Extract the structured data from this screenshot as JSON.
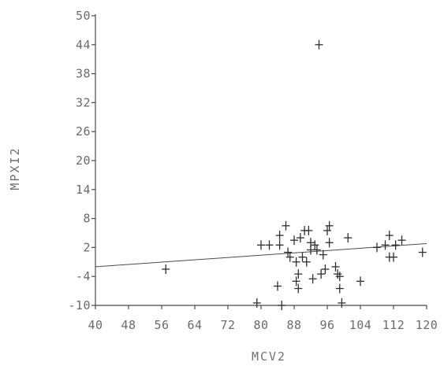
{
  "chart_data": {
    "type": "scatter",
    "title": "",
    "xlabel": "MCV2",
    "ylabel": "MPXI2",
    "xlim": [
      40,
      120
    ],
    "ylim": [
      -10,
      50
    ],
    "x_ticks": [
      40,
      48,
      56,
      64,
      72,
      80,
      88,
      96,
      104,
      112,
      120
    ],
    "x_tick_labels": [
      "40",
      "48",
      "56",
      "64",
      "72",
      "80",
      "88",
      "96",
      "104",
      "112",
      "120"
    ],
    "y_ticks": [
      -10,
      -4,
      2,
      8,
      14,
      20,
      26,
      32,
      38,
      44,
      50
    ],
    "y_tick_labels": [
      "-10",
      "-4",
      "2",
      "8",
      "14",
      "20",
      "26",
      "32",
      "38",
      "44",
      "50"
    ],
    "grid": false,
    "legend": "none",
    "regression_line": {
      "x": [
        40,
        120
      ],
      "y": [
        -2.0,
        2.8
      ]
    },
    "points": [
      {
        "x": 57,
        "y": -2.5
      },
      {
        "x": 79,
        "y": -9.5
      },
      {
        "x": 80,
        "y": 2.5
      },
      {
        "x": 82,
        "y": 2.5
      },
      {
        "x": 84,
        "y": -6.0
      },
      {
        "x": 84.5,
        "y": 4.5
      },
      {
        "x": 84.5,
        "y": 2.5
      },
      {
        "x": 85,
        "y": -10.0
      },
      {
        "x": 86,
        "y": 6.5
      },
      {
        "x": 86.5,
        "y": 1.0
      },
      {
        "x": 87,
        "y": 0.0
      },
      {
        "x": 88,
        "y": 3.5
      },
      {
        "x": 88.5,
        "y": -1.0
      },
      {
        "x": 88.5,
        "y": -5.0
      },
      {
        "x": 89,
        "y": -3.5
      },
      {
        "x": 89,
        "y": -6.5
      },
      {
        "x": 89.5,
        "y": 4.0
      },
      {
        "x": 90,
        "y": 0.0
      },
      {
        "x": 90.5,
        "y": 5.5
      },
      {
        "x": 91,
        "y": -1.0
      },
      {
        "x": 91.5,
        "y": 5.5
      },
      {
        "x": 92,
        "y": 1.5
      },
      {
        "x": 92,
        "y": 3.0
      },
      {
        "x": 92.5,
        "y": -4.5
      },
      {
        "x": 93,
        "y": 2.5
      },
      {
        "x": 93.5,
        "y": 1.5
      },
      {
        "x": 94,
        "y": 44.0
      },
      {
        "x": 94.5,
        "y": -3.5
      },
      {
        "x": 95,
        "y": 0.5
      },
      {
        "x": 95.5,
        "y": -2.5
      },
      {
        "x": 96,
        "y": 5.5
      },
      {
        "x": 96.5,
        "y": 6.5
      },
      {
        "x": 96.5,
        "y": 3.0
      },
      {
        "x": 98,
        "y": -2.0
      },
      {
        "x": 98.5,
        "y": -3.5
      },
      {
        "x": 99,
        "y": -6.5
      },
      {
        "x": 99,
        "y": -4.0
      },
      {
        "x": 99.5,
        "y": -9.5
      },
      {
        "x": 101,
        "y": 4.0
      },
      {
        "x": 104,
        "y": -5.0
      },
      {
        "x": 108,
        "y": 2.0
      },
      {
        "x": 110,
        "y": 2.5
      },
      {
        "x": 111,
        "y": 4.5
      },
      {
        "x": 111,
        "y": 0.0
      },
      {
        "x": 112,
        "y": 0.0
      },
      {
        "x": 112.5,
        "y": 2.5
      },
      {
        "x": 114,
        "y": 3.5
      },
      {
        "x": 119,
        "y": 1.0
      }
    ]
  }
}
